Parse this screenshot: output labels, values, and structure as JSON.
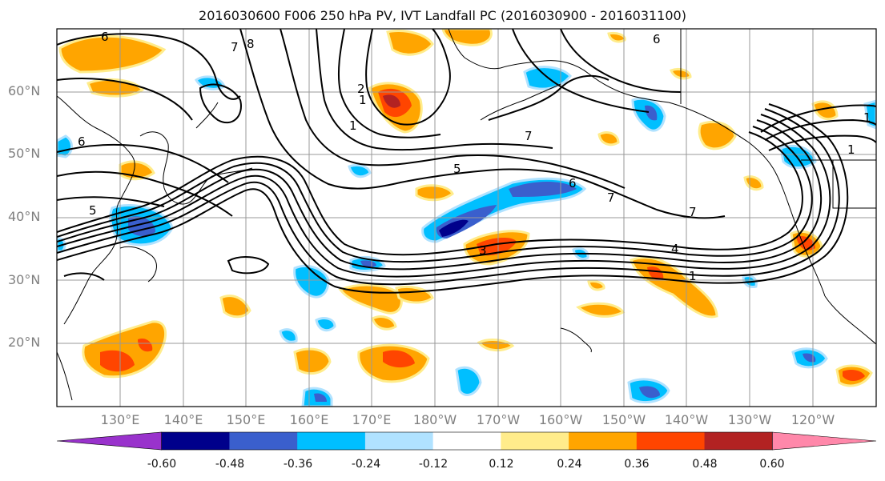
{
  "title": "2016030600 F006 250 hPa PV, IVT Landfall PC (2016030900 - 2016031100)",
  "latitude_labels": [
    "60°N",
    "50°N",
    "40°N",
    "30°N",
    "20°N"
  ],
  "longitude_labels": [
    "130°E",
    "140°E",
    "150°E",
    "160°E",
    "170°E",
    "180°W",
    "170°W",
    "160°W",
    "150°W",
    "140°W",
    "130°W",
    "120°W"
  ],
  "contour_labels": [
    "6",
    "8",
    "7",
    "1",
    "2",
    "1",
    "6",
    "7",
    "5",
    "6",
    "7",
    "7",
    "6",
    "5",
    "4",
    "3",
    "1",
    "1",
    "1"
  ],
  "colorbar": {
    "tick_labels": [
      "-0.60",
      "-0.48",
      "-0.36",
      "-0.24",
      "-0.12",
      "0.12",
      "0.24",
      "0.36",
      "0.48",
      "0.60"
    ],
    "colors": [
      "#9932cc",
      "#00008b",
      "#3a5fcd",
      "#00bfff",
      "#b0e2ff",
      "#ffffff",
      "#ffec8b",
      "#ffa500",
      "#ff4500",
      "#b22222",
      "#ff88aa"
    ]
  },
  "colors": {
    "grid": "#999999",
    "axis_label": "#7f7f7f",
    "contour": "#000000",
    "coastline": "#000000"
  }
}
